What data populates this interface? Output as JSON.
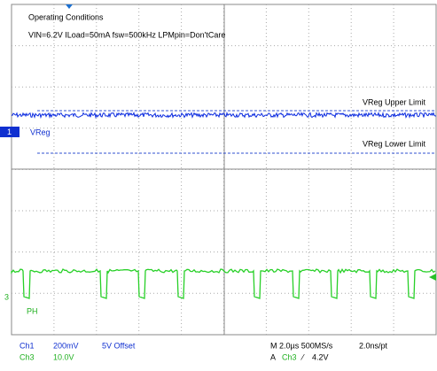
{
  "header": {
    "title": "Operating Conditions",
    "conditions": "VIN=6.2V ILoad=50mA fsw=500kHz LPMpin=Don'tCare"
  },
  "annotations": {
    "upper": "VReg Upper Limit",
    "lower": "VReg Lower Limit"
  },
  "traces": {
    "ch1_marker": "1",
    "ch1_label": "VReg",
    "ch3_marker": "3",
    "ch3_label": "PH"
  },
  "footer": {
    "ch1": "Ch1",
    "ch1_scale": "200mV",
    "ch1_offset": "5V Offset",
    "ch3": "Ch3",
    "ch3_scale": "10.0V",
    "timebase": "M 2.0µs 500MS/s",
    "resolution": "2.0ns/pt",
    "trigger": "A",
    "trigger_source": "Ch3",
    "trigger_slope": "⁄",
    "trigger_level": "4.2V"
  }
}
